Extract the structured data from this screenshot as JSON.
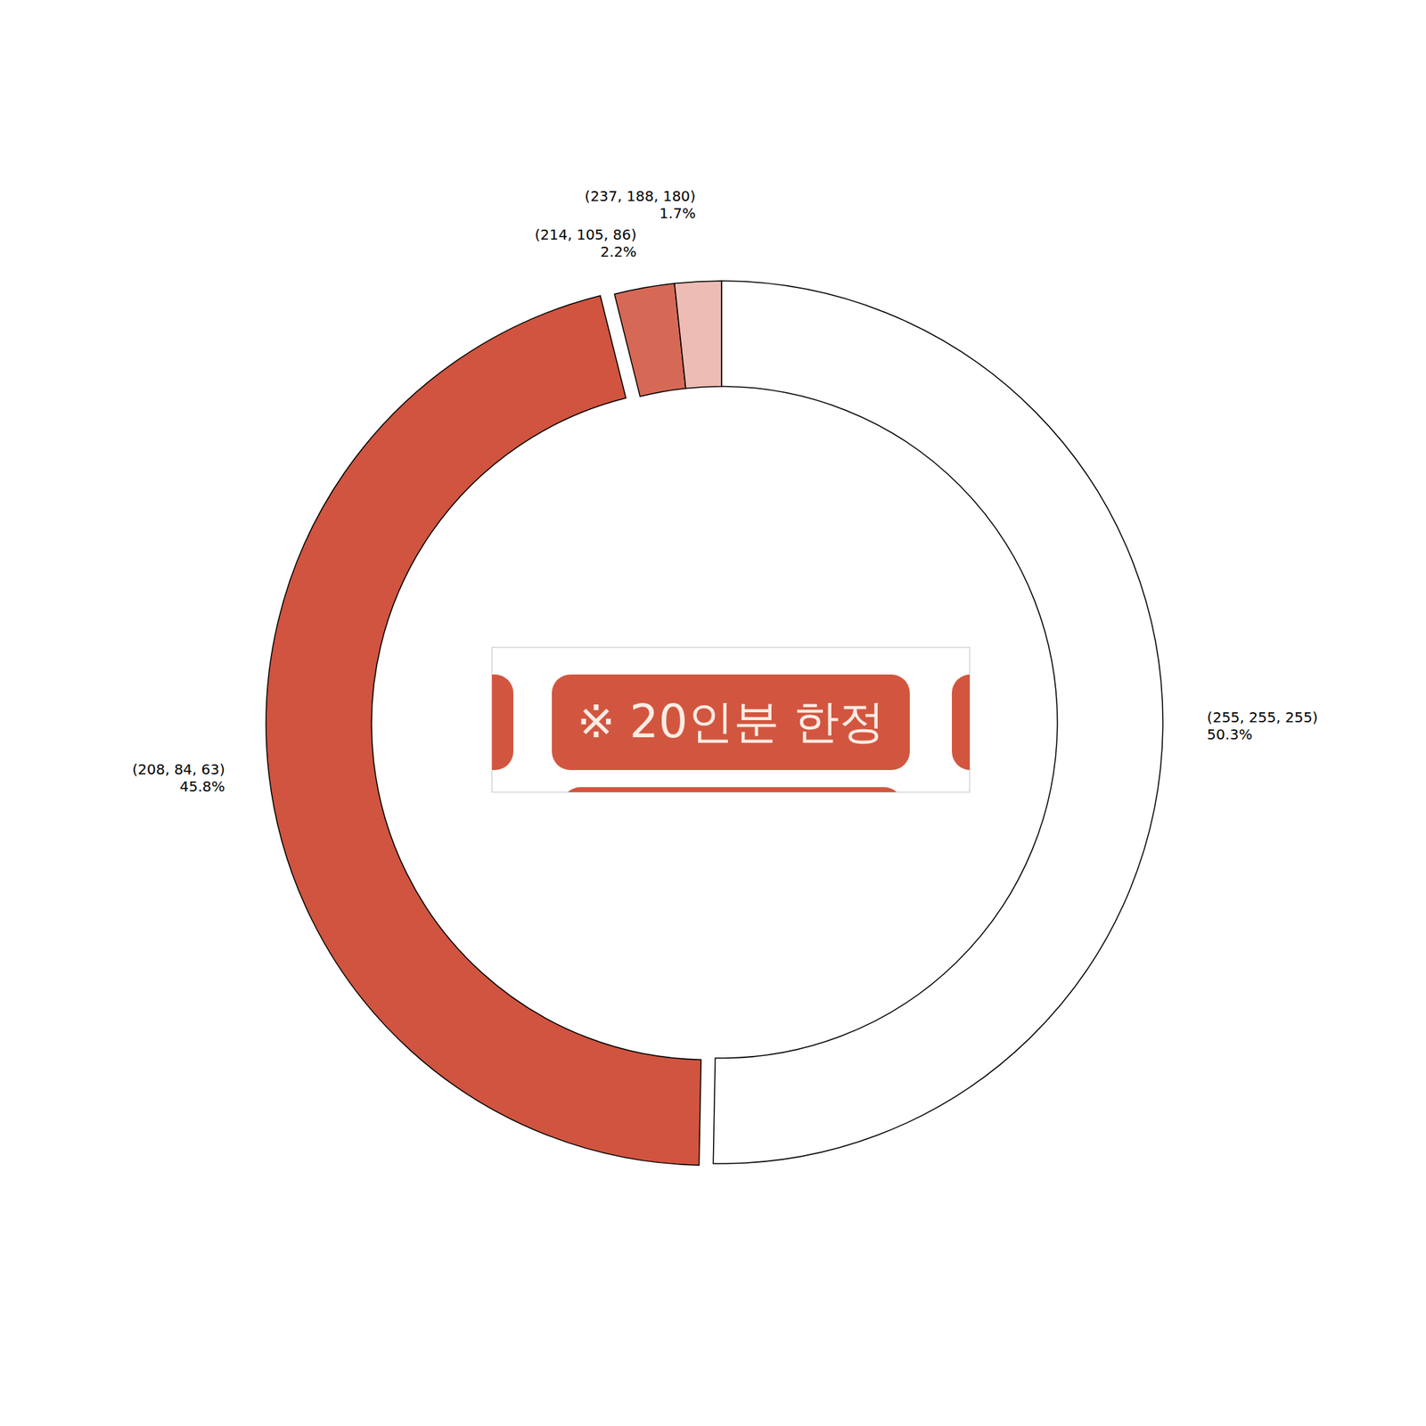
{
  "chart_data": {
    "type": "pie",
    "categories": [
      "(255, 255, 255)",
      "(208, 84, 63)",
      "(214, 105, 86)",
      "(237, 188, 180)"
    ],
    "values": [
      50.3,
      45.8,
      2.2,
      1.7
    ],
    "value_labels": [
      "50.3%",
      "45.8%",
      "2.2%",
      "1.7%"
    ],
    "colors": [
      "#ffffff",
      "#d0543f",
      "#d66956",
      "#edbcb4"
    ],
    "data_labels": true,
    "annotations": [
      "※ 20인분 한정"
    ]
  }
}
